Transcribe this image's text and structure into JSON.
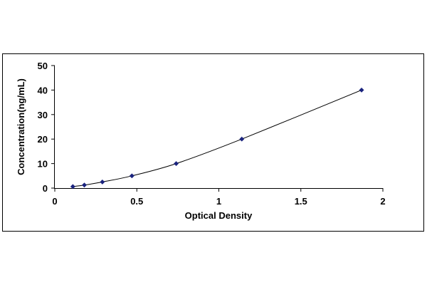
{
  "chart_data": {
    "type": "scatter",
    "title": "",
    "xlabel": "Optical Density",
    "ylabel": "Concentration(ng/mL)",
    "xlim": [
      0,
      2
    ],
    "ylim": [
      0,
      50
    ],
    "x_ticks": [
      "0",
      "0.5",
      "1",
      "1.5",
      "2"
    ],
    "y_ticks": [
      "0",
      "10",
      "20",
      "30",
      "40",
      "50"
    ],
    "grid": false,
    "legend": "none",
    "trendline": "smooth curve through points",
    "series": [
      {
        "x": [
          0.11,
          0.18,
          0.29,
          0.47,
          0.74,
          1.14,
          1.87
        ],
        "y": [
          0.625,
          1.25,
          2.5,
          5,
          10,
          20,
          40
        ]
      }
    ],
    "colors": {
      "marker": "#1a237e",
      "line": "#000000",
      "frame": "#000000",
      "background": "#ffffff"
    }
  }
}
